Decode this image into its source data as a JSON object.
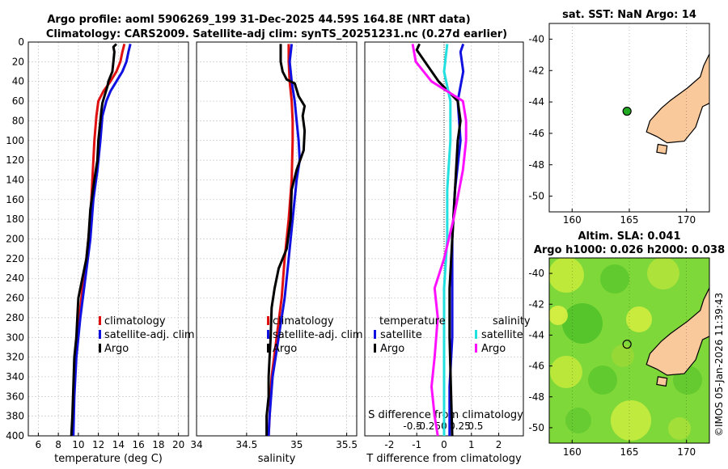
{
  "titles": {
    "line1": "Argo profile: aoml 5906269_199 31-Dec-2025 44.59S 164.8E (NRT data)",
    "line2": "Climatology: CARS2009. Satellite-adj clim: synTS_20251231.nc (0.27d earlier)"
  },
  "colors": {
    "climatology": "#e01010",
    "satellite": "#1010e0",
    "argo": "#000000",
    "sat_salinity": "#20e0e0",
    "argo_salinity": "#ff10ff",
    "land": "#f9c89b"
  },
  "chart_data": [
    {
      "type": "line",
      "id": "temperature",
      "xlabel": "temperature (deg C)",
      "ylabel": "",
      "xlim": [
        5,
        21
      ],
      "ylim": [
        400,
        0
      ],
      "xticks": [
        "6",
        "8",
        "10",
        "12",
        "14",
        "16",
        "18",
        "20"
      ],
      "xtick_values": [
        6,
        8,
        10,
        12,
        14,
        16,
        18,
        20
      ],
      "yticks": [
        "0",
        "20",
        "40",
        "60",
        "80",
        "100",
        "120",
        "140",
        "160",
        "180",
        "200",
        "220",
        "240",
        "260",
        "280",
        "300",
        "320",
        "340",
        "360",
        "380",
        "400"
      ],
      "legend": {
        "items": [
          "climatology",
          "satellite-adj. clim",
          "Argo"
        ]
      },
      "series": [
        {
          "name": "climatology",
          "color": "#e01010",
          "points": [
            [
              14.6,
              2
            ],
            [
              14.4,
              10
            ],
            [
              14.2,
              20
            ],
            [
              13.8,
              30
            ],
            [
              13.2,
              40
            ],
            [
              12.5,
              50
            ],
            [
              12.0,
              60
            ],
            [
              11.8,
              75
            ],
            [
              11.6,
              100
            ],
            [
              11.4,
              140
            ],
            [
              11.2,
              180
            ],
            [
              10.8,
              220
            ],
            [
              10.3,
              260
            ],
            [
              9.9,
              300
            ],
            [
              9.6,
              340
            ],
            [
              9.5,
              380
            ],
            [
              9.4,
              400
            ]
          ]
        },
        {
          "name": "satellite-adj. clim",
          "color": "#1010e0",
          "points": [
            [
              15.2,
              2
            ],
            [
              15.0,
              10
            ],
            [
              14.8,
              20
            ],
            [
              14.4,
              30
            ],
            [
              13.8,
              40
            ],
            [
              13.2,
              50
            ],
            [
              12.8,
              60
            ],
            [
              12.4,
              75
            ],
            [
              12.2,
              100
            ],
            [
              11.9,
              130
            ],
            [
              11.5,
              160
            ],
            [
              11.2,
              200
            ],
            [
              10.7,
              240
            ],
            [
              10.2,
              280
            ],
            [
              9.8,
              320
            ],
            [
              9.6,
              360
            ],
            [
              9.5,
              400
            ]
          ]
        },
        {
          "name": "Argo",
          "color": "#000000",
          "points": [
            [
              13.8,
              2
            ],
            [
              13.5,
              5
            ],
            [
              13.6,
              10
            ],
            [
              13.5,
              20
            ],
            [
              13.4,
              30
            ],
            [
              13.0,
              40
            ],
            [
              12.9,
              45
            ],
            [
              12.6,
              55
            ],
            [
              12.4,
              62
            ],
            [
              12.3,
              70
            ],
            [
              12.2,
              80
            ],
            [
              12.0,
              100
            ],
            [
              11.9,
              120
            ],
            [
              11.6,
              140
            ],
            [
              11.2,
              170
            ],
            [
              11.0,
              200
            ],
            [
              10.8,
              220
            ],
            [
              10.4,
              240
            ],
            [
              10.0,
              260
            ],
            [
              9.9,
              280
            ],
            [
              9.8,
              300
            ],
            [
              9.6,
              320
            ],
            [
              9.5,
              350
            ],
            [
              9.4,
              380
            ],
            [
              9.3,
              400
            ]
          ]
        }
      ]
    },
    {
      "type": "line",
      "id": "salinity",
      "xlabel": "salinity",
      "ylabel": "",
      "xlim": [
        34,
        35.6
      ],
      "ylim": [
        400,
        0
      ],
      "xticks": [
        "34",
        "34.5",
        "35",
        "35.5"
      ],
      "xtick_values": [
        34,
        34.5,
        35,
        35.5
      ],
      "legend": {
        "items": [
          "climatology",
          "satellite-adj. clim",
          "Argo"
        ]
      },
      "series": [
        {
          "name": "climatology",
          "color": "#e01010",
          "points": [
            [
              34.92,
              2
            ],
            [
              34.92,
              20
            ],
            [
              34.93,
              40
            ],
            [
              34.95,
              60
            ],
            [
              34.96,
              80
            ],
            [
              34.96,
              100
            ],
            [
              34.95,
              140
            ],
            [
              34.92,
              180
            ],
            [
              34.88,
              220
            ],
            [
              34.85,
              260
            ],
            [
              34.8,
              300
            ],
            [
              34.75,
              340
            ],
            [
              34.73,
              380
            ],
            [
              34.72,
              400
            ]
          ]
        },
        {
          "name": "satellite-adj. clim",
          "color": "#1010e0",
          "points": [
            [
              34.95,
              2
            ],
            [
              34.93,
              20
            ],
            [
              34.95,
              40
            ],
            [
              34.98,
              60
            ],
            [
              35.0,
              80
            ],
            [
              35.02,
              100
            ],
            [
              35.03,
              120
            ],
            [
              35.0,
              140
            ],
            [
              34.96,
              180
            ],
            [
              34.92,
              220
            ],
            [
              34.88,
              260
            ],
            [
              34.82,
              300
            ],
            [
              34.76,
              340
            ],
            [
              34.73,
              380
            ],
            [
              34.72,
              400
            ]
          ]
        },
        {
          "name": "Argo",
          "color": "#000000",
          "points": [
            [
              34.84,
              2
            ],
            [
              34.84,
              20
            ],
            [
              34.86,
              30
            ],
            [
              34.9,
              38
            ],
            [
              34.98,
              42
            ],
            [
              35.02,
              55
            ],
            [
              35.08,
              65
            ],
            [
              35.06,
              75
            ],
            [
              35.08,
              90
            ],
            [
              35.07,
              110
            ],
            [
              35.0,
              130
            ],
            [
              34.95,
              150
            ],
            [
              34.94,
              180
            ],
            [
              34.9,
              210
            ],
            [
              34.82,
              230
            ],
            [
              34.78,
              250
            ],
            [
              34.75,
              270
            ],
            [
              34.74,
              300
            ],
            [
              34.73,
              320
            ],
            [
              34.72,
              340
            ],
            [
              34.72,
              360
            ],
            [
              34.7,
              380
            ],
            [
              34.7,
              400
            ]
          ]
        }
      ]
    },
    {
      "type": "line",
      "id": "difference",
      "xlabel": "T difference from climatology",
      "xlabel_top": "S difference from climatology",
      "xlim": [
        -2.9,
        2.9
      ],
      "ylim": [
        400,
        0
      ],
      "xticks": [
        "-2",
        "-1",
        "0",
        "1",
        "2"
      ],
      "xtick_values": [
        -2,
        -1,
        0,
        1,
        2
      ],
      "xticks_s": [
        "-0.5",
        "-0.25",
        "0",
        "0.25",
        "0.5"
      ],
      "legend": {
        "temperature_title": "temperature",
        "salinity_title": "salinity",
        "items": [
          "satellite",
          "Argo",
          "satellite",
          "Argo"
        ]
      },
      "series": [
        {
          "name": "T satellite",
          "color": "#1010e0",
          "points": [
            [
              0.7,
              2
            ],
            [
              0.6,
              10
            ],
            [
              0.7,
              30
            ],
            [
              0.5,
              60
            ],
            [
              0.6,
              100
            ],
            [
              0.4,
              150
            ],
            [
              0.3,
              200
            ],
            [
              0.3,
              250
            ],
            [
              0.3,
              300
            ],
            [
              0.2,
              350
            ],
            [
              0.2,
              400
            ]
          ]
        },
        {
          "name": "T Argo",
          "color": "#000000",
          "points": [
            [
              -0.9,
              2
            ],
            [
              -1.0,
              8
            ],
            [
              -0.7,
              20
            ],
            [
              -0.2,
              40
            ],
            [
              0.5,
              60
            ],
            [
              0.6,
              80
            ],
            [
              0.5,
              100
            ],
            [
              0.4,
              150
            ],
            [
              0.3,
              200
            ],
            [
              0.2,
              250
            ],
            [
              0.2,
              300
            ],
            [
              0.25,
              350
            ],
            [
              0.3,
              400
            ]
          ]
        },
        {
          "name": "S satellite",
          "color": "#20e0e0",
          "points": [
            [
              0.05,
              2
            ],
            [
              0.0,
              30
            ],
            [
              0.1,
              60
            ],
            [
              0.1,
              100
            ],
            [
              0.05,
              150
            ],
            [
              0.05,
              200
            ],
            [
              0.0,
              250
            ],
            [
              0.0,
              300
            ],
            [
              0.0,
              350
            ],
            [
              0.0,
              400
            ]
          ]
        },
        {
          "name": "S Argo",
          "color": "#ff10ff",
          "points": [
            [
              -0.5,
              2
            ],
            [
              -0.45,
              20
            ],
            [
              -0.2,
              40
            ],
            [
              0.3,
              60
            ],
            [
              0.35,
              80
            ],
            [
              0.35,
              100
            ],
            [
              0.3,
              130
            ],
            [
              0.15,
              180
            ],
            [
              0.0,
              220
            ],
            [
              -0.15,
              250
            ],
            [
              -0.1,
              280
            ],
            [
              -0.15,
              320
            ],
            [
              -0.2,
              350
            ],
            [
              -0.15,
              380
            ],
            [
              -0.1,
              400
            ]
          ]
        }
      ]
    },
    {
      "type": "map",
      "id": "sst_map",
      "title": "sat. SST: NaN Argo: 14",
      "xlim": [
        158,
        172
      ],
      "ylim": [
        -51,
        -39
      ],
      "xticks": [
        "160",
        "165",
        "170"
      ],
      "xtick_values": [
        160,
        165,
        170
      ],
      "yticks": [
        "-40",
        "-42",
        "-44",
        "-46",
        "-48",
        "-50"
      ],
      "ytick_values": [
        -40,
        -42,
        -44,
        -46,
        -48,
        -50
      ],
      "float_position": [
        164.8,
        -44.59
      ]
    },
    {
      "type": "map",
      "id": "sla_map",
      "title": "Altim. SLA: 0.041",
      "subtitle": "Argo h1000: 0.026 h2000: 0.038",
      "xlim": [
        158,
        172
      ],
      "ylim": [
        -51,
        -39
      ],
      "xticks": [
        "160",
        "165",
        "170"
      ],
      "xtick_values": [
        160,
        165,
        170
      ],
      "yticks": [
        "-40",
        "-42",
        "-44",
        "-46",
        "-48",
        "-50"
      ],
      "ytick_values": [
        -40,
        -42,
        -44,
        -46,
        -48,
        -50
      ],
      "float_position": [
        164.8,
        -44.59
      ]
    }
  ],
  "stamp": "©IMOS 05-Jan-2026 11:39:43"
}
